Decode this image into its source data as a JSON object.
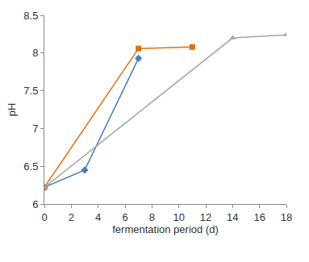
{
  "chart_data": {
    "type": "line",
    "x_label": "fermentation period (d)",
    "y_label": "pH",
    "xlim": [
      0,
      18
    ],
    "xticks": [
      0,
      2,
      4,
      6,
      8,
      10,
      12,
      14,
      16,
      18
    ],
    "ylim": [
      6,
      8.5
    ],
    "yticks": [
      6,
      6.5,
      7,
      7.5,
      8,
      8.5
    ],
    "grid": false,
    "series": [
      {
        "color": "#4a7ebb",
        "marker": "diamond",
        "x": [
          0,
          3,
          7
        ],
        "values": [
          6.22,
          6.45,
          7.93
        ]
      },
      {
        "color": "#e46c0a",
        "marker": "square",
        "x": [
          0,
          7,
          11
        ],
        "values": [
          6.22,
          8.06,
          8.08
        ]
      },
      {
        "color": "#a5a5a5",
        "marker": "triangle",
        "x": [
          0,
          14,
          18
        ],
        "values": [
          6.22,
          8.2,
          8.24
        ]
      }
    ]
  }
}
